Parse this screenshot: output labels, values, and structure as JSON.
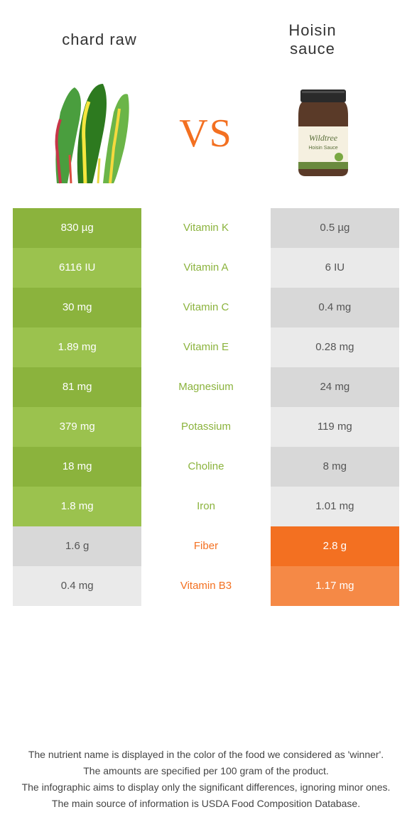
{
  "header": {
    "left_title": "chard raw",
    "right_title_line1": "Hoisin",
    "right_title_line2": "sauce",
    "vs_label": "VS"
  },
  "colors": {
    "left_winner_odd": "#8bb33d",
    "left_winner_even": "#9bc24e",
    "right_winner_odd": "#f37021",
    "right_winner_even": "#f58946",
    "loser_odd": "#d8d8d8",
    "loser_even": "#eaeaea",
    "nutrient_green": "#8bb33d",
    "nutrient_orange": "#f37021",
    "background": "#ffffff",
    "text": "#333333"
  },
  "rows": [
    {
      "left": "830 µg",
      "nutrient": "Vitamin K",
      "right": "0.5 µg",
      "winner": "left"
    },
    {
      "left": "6116 IU",
      "nutrient": "Vitamin A",
      "right": "6 IU",
      "winner": "left"
    },
    {
      "left": "30 mg",
      "nutrient": "Vitamin C",
      "right": "0.4 mg",
      "winner": "left"
    },
    {
      "left": "1.89 mg",
      "nutrient": "Vitamin E",
      "right": "0.28 mg",
      "winner": "left"
    },
    {
      "left": "81 mg",
      "nutrient": "Magnesium",
      "right": "24 mg",
      "winner": "left"
    },
    {
      "left": "379 mg",
      "nutrient": "Potassium",
      "right": "119 mg",
      "winner": "left"
    },
    {
      "left": "18 mg",
      "nutrient": "Choline",
      "right": "8 mg",
      "winner": "left"
    },
    {
      "left": "1.8 mg",
      "nutrient": "Iron",
      "right": "1.01 mg",
      "winner": "left"
    },
    {
      "left": "1.6 g",
      "nutrient": "Fiber",
      "right": "2.8 g",
      "winner": "right"
    },
    {
      "left": "0.4 mg",
      "nutrient": "Vitamin B3",
      "right": "1.17 mg",
      "winner": "right"
    }
  ],
  "footer": {
    "line1": "The nutrient name is displayed in the color of the food we considered as 'winner'.",
    "line2": "The amounts are specified per 100 gram of the product.",
    "line3": "The infographic aims to display only the significant differences, ignoring minor ones.",
    "line4": "The main source of information is USDA Food Composition Database."
  }
}
